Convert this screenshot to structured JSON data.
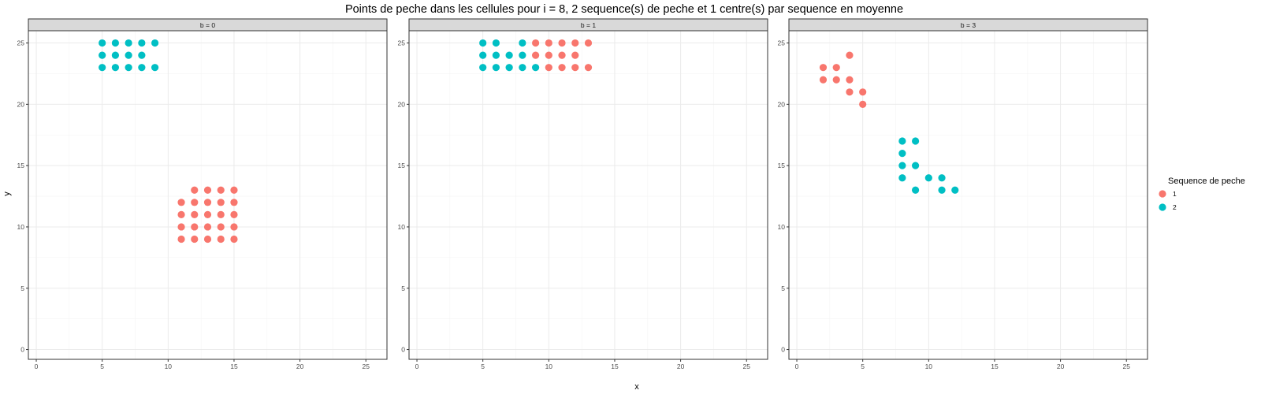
{
  "chart_data": {
    "type": "scatter",
    "title": "Points de peche dans les cellules pour i = 8, 2 sequence(s) de peche et 1 centre(s) par sequence en moyenne",
    "xlabel": "x",
    "ylabel": "y",
    "xlim": [
      -0.6,
      26.6
    ],
    "ylim": [
      -0.8,
      26.0
    ],
    "x_ticks": [
      0,
      5,
      10,
      15,
      20,
      25
    ],
    "y_ticks": [
      0,
      5,
      10,
      15,
      20,
      25
    ],
    "grid": true,
    "legend": {
      "title": "Sequence de peche",
      "position": "right",
      "entries": [
        {
          "label": "1",
          "color": "#F8766D"
        },
        {
          "label": "2",
          "color": "#00BFC4"
        }
      ]
    },
    "panels": [
      {
        "strip": "b = 0",
        "series": [
          {
            "name": "1",
            "color": "#F8766D",
            "points": [
              [
                12,
                13
              ],
              [
                13,
                13
              ],
              [
                14,
                13
              ],
              [
                15,
                13
              ],
              [
                11,
                12
              ],
              [
                12,
                12
              ],
              [
                13,
                12
              ],
              [
                14,
                12
              ],
              [
                15,
                12
              ],
              [
                11,
                11
              ],
              [
                12,
                11
              ],
              [
                13,
                11
              ],
              [
                14,
                11
              ],
              [
                15,
                11
              ],
              [
                11,
                10
              ],
              [
                12,
                10
              ],
              [
                13,
                10
              ],
              [
                14,
                10
              ],
              [
                15,
                10
              ],
              [
                11,
                9
              ],
              [
                12,
                9
              ],
              [
                13,
                9
              ],
              [
                14,
                9
              ],
              [
                15,
                9
              ]
            ]
          },
          {
            "name": "2",
            "color": "#00BFC4",
            "points": [
              [
                5,
                25
              ],
              [
                6,
                25
              ],
              [
                7,
                25
              ],
              [
                8,
                25
              ],
              [
                9,
                25
              ],
              [
                5,
                24
              ],
              [
                6,
                24
              ],
              [
                7,
                24
              ],
              [
                8,
                24
              ],
              [
                5,
                23
              ],
              [
                6,
                23
              ],
              [
                7,
                23
              ],
              [
                8,
                23
              ],
              [
                9,
                23
              ]
            ]
          }
        ]
      },
      {
        "strip": "b = 1",
        "series": [
          {
            "name": "1",
            "color": "#F8766D",
            "points": [
              [
                9,
                25
              ],
              [
                10,
                25
              ],
              [
                11,
                25
              ],
              [
                12,
                25
              ],
              [
                13,
                25
              ],
              [
                9,
                24
              ],
              [
                10,
                24
              ],
              [
                11,
                24
              ],
              [
                12,
                24
              ],
              [
                10,
                23
              ],
              [
                11,
                23
              ],
              [
                12,
                23
              ],
              [
                13,
                23
              ]
            ]
          },
          {
            "name": "2",
            "color": "#00BFC4",
            "points": [
              [
                5,
                25
              ],
              [
                6,
                25
              ],
              [
                8,
                25
              ],
              [
                5,
                24
              ],
              [
                6,
                24
              ],
              [
                7,
                24
              ],
              [
                8,
                24
              ],
              [
                5,
                23
              ],
              [
                6,
                23
              ],
              [
                7,
                23
              ],
              [
                8,
                23
              ],
              [
                9,
                23
              ]
            ]
          }
        ]
      },
      {
        "strip": "b = 3",
        "series": [
          {
            "name": "1",
            "color": "#F8766D",
            "points": [
              [
                4,
                24
              ],
              [
                2,
                23
              ],
              [
                3,
                23
              ],
              [
                2,
                22
              ],
              [
                3,
                22
              ],
              [
                4,
                22
              ],
              [
                4,
                21
              ],
              [
                5,
                21
              ],
              [
                5,
                20
              ]
            ]
          },
          {
            "name": "2",
            "color": "#00BFC4",
            "points": [
              [
                8,
                17
              ],
              [
                9,
                17
              ],
              [
                8,
                16
              ],
              [
                8,
                15
              ],
              [
                9,
                15
              ],
              [
                8,
                14
              ],
              [
                10,
                14
              ],
              [
                11,
                14
              ],
              [
                9,
                13
              ],
              [
                11,
                13
              ],
              [
                12,
                13
              ]
            ]
          }
        ]
      }
    ]
  }
}
